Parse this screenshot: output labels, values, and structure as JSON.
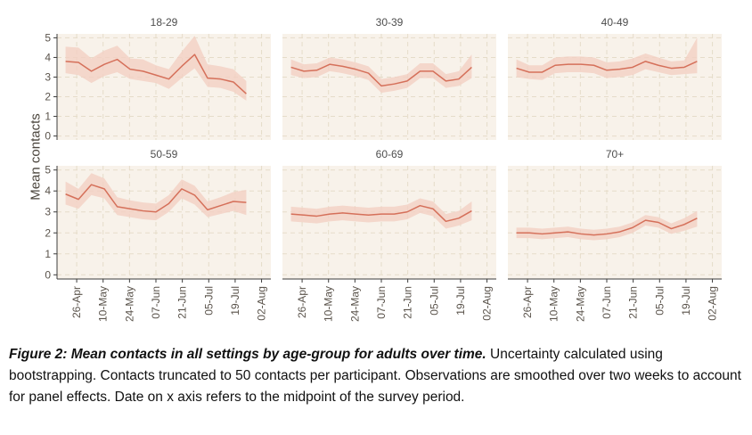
{
  "figure": {
    "caption_bold": "Figure 2: Mean contacts in all settings by age-group for adults over time.",
    "caption_rest": " Uncertainty calculated using bootstrapping. Contacts truncated to 50 contacts per participant. Observations are smoothed over two weeks to account for panel effects. Date on x axis refers to the midpoint of the survey period."
  },
  "chart_data": {
    "type": "line",
    "title": "",
    "xlabel": "",
    "ylabel": "Mean contacts",
    "ylim": [
      0,
      5
    ],
    "y_ticks": [
      0,
      1,
      2,
      3,
      4,
      5
    ],
    "x_tick_labels": [
      "26-Apr",
      "10-May",
      "24-May",
      "07-Jun",
      "21-Jun",
      "05-Jul",
      "19-Jul",
      "02-Aug"
    ],
    "grid": "dashed",
    "legend": "none",
    "band_meaning": "bootstrap uncertainty interval",
    "colors": {
      "line": "#d5705a",
      "band": "#f2cfc3",
      "panel_bg": "#f8f2ea",
      "grid": "#e5dcc9",
      "axis": "#3c3c3c",
      "tick_text": "#5a534b",
      "facet_title": "#4d4d4d"
    },
    "layout": {
      "tick_first_frac": 0.092,
      "tick_step_frac": 0.1235,
      "data_start_frac": 0.04,
      "data_end_frac": 0.885
    },
    "facets": [
      {
        "title": "18-29",
        "mean": [
          3.8,
          3.75,
          3.3,
          3.65,
          3.9,
          3.4,
          3.3,
          3.1,
          2.9,
          3.55,
          4.15,
          2.95,
          2.9,
          2.75,
          2.15
        ],
        "upper": [
          4.55,
          4.5,
          3.95,
          4.35,
          4.6,
          3.95,
          3.9,
          3.6,
          3.4,
          4.3,
          5.1,
          3.65,
          3.55,
          3.4,
          2.8
        ],
        "lower": [
          3.2,
          3.1,
          2.7,
          3.05,
          3.25,
          2.9,
          2.8,
          2.7,
          2.4,
          2.95,
          3.45,
          2.5,
          2.45,
          2.25,
          1.8
        ]
      },
      {
        "title": "30-39",
        "mean": [
          3.5,
          3.3,
          3.35,
          3.65,
          3.55,
          3.4,
          3.2,
          2.55,
          2.65,
          2.8,
          3.3,
          3.3,
          2.8,
          2.9,
          3.5
        ],
        "upper": [
          3.9,
          3.65,
          3.7,
          4.0,
          3.9,
          3.75,
          3.55,
          2.9,
          3.0,
          3.15,
          3.7,
          3.7,
          3.15,
          3.3,
          4.15
        ],
        "lower": [
          3.1,
          2.95,
          3.0,
          3.3,
          3.2,
          3.05,
          2.85,
          2.2,
          2.3,
          2.45,
          2.95,
          2.95,
          2.45,
          2.55,
          2.95
        ]
      },
      {
        "title": "40-49",
        "mean": [
          3.45,
          3.25,
          3.25,
          3.6,
          3.65,
          3.65,
          3.6,
          3.35,
          3.4,
          3.5,
          3.8,
          3.6,
          3.45,
          3.5,
          3.8
        ],
        "upper": [
          3.9,
          3.6,
          3.6,
          4.0,
          4.05,
          4.05,
          4.0,
          3.75,
          3.8,
          3.95,
          4.2,
          4.0,
          3.8,
          3.85,
          5.0
        ],
        "lower": [
          3.0,
          2.9,
          2.85,
          3.2,
          3.25,
          3.25,
          3.2,
          2.95,
          3.0,
          3.1,
          3.4,
          3.25,
          3.1,
          3.15,
          3.2
        ]
      },
      {
        "title": "50-59",
        "mean": [
          3.85,
          3.6,
          4.3,
          4.1,
          3.25,
          3.15,
          3.05,
          3.0,
          3.4,
          4.1,
          3.8,
          3.1,
          3.3,
          3.5,
          3.45
        ],
        "upper": [
          4.45,
          4.1,
          4.85,
          4.6,
          3.7,
          3.55,
          3.45,
          3.4,
          3.8,
          4.55,
          4.25,
          3.5,
          3.7,
          3.95,
          4.05
        ],
        "lower": [
          3.35,
          3.15,
          3.8,
          3.65,
          2.85,
          2.75,
          2.65,
          2.6,
          3.0,
          3.65,
          3.35,
          2.75,
          2.9,
          3.05,
          2.85
        ]
      },
      {
        "title": "60-69",
        "mean": [
          2.9,
          2.85,
          2.8,
          2.9,
          2.95,
          2.9,
          2.85,
          2.9,
          2.9,
          3.0,
          3.3,
          3.15,
          2.55,
          2.7,
          3.05
        ],
        "upper": [
          3.25,
          3.2,
          3.15,
          3.25,
          3.3,
          3.25,
          3.2,
          3.25,
          3.25,
          3.35,
          3.65,
          3.5,
          2.9,
          3.05,
          3.5
        ],
        "lower": [
          2.55,
          2.5,
          2.45,
          2.55,
          2.6,
          2.55,
          2.5,
          2.55,
          2.55,
          2.65,
          2.95,
          2.8,
          2.2,
          2.35,
          2.6
        ]
      },
      {
        "title": "70+",
        "mean": [
          2.0,
          2.0,
          1.95,
          2.0,
          2.05,
          1.95,
          1.9,
          1.95,
          2.05,
          2.25,
          2.6,
          2.5,
          2.2,
          2.4,
          2.7
        ],
        "upper": [
          2.25,
          2.25,
          2.2,
          2.25,
          2.3,
          2.2,
          2.15,
          2.2,
          2.3,
          2.5,
          2.85,
          2.75,
          2.45,
          2.7,
          3.05
        ],
        "lower": [
          1.75,
          1.75,
          1.7,
          1.75,
          1.8,
          1.7,
          1.65,
          1.7,
          1.8,
          2.0,
          2.35,
          2.25,
          1.95,
          2.1,
          2.3
        ]
      }
    ]
  }
}
